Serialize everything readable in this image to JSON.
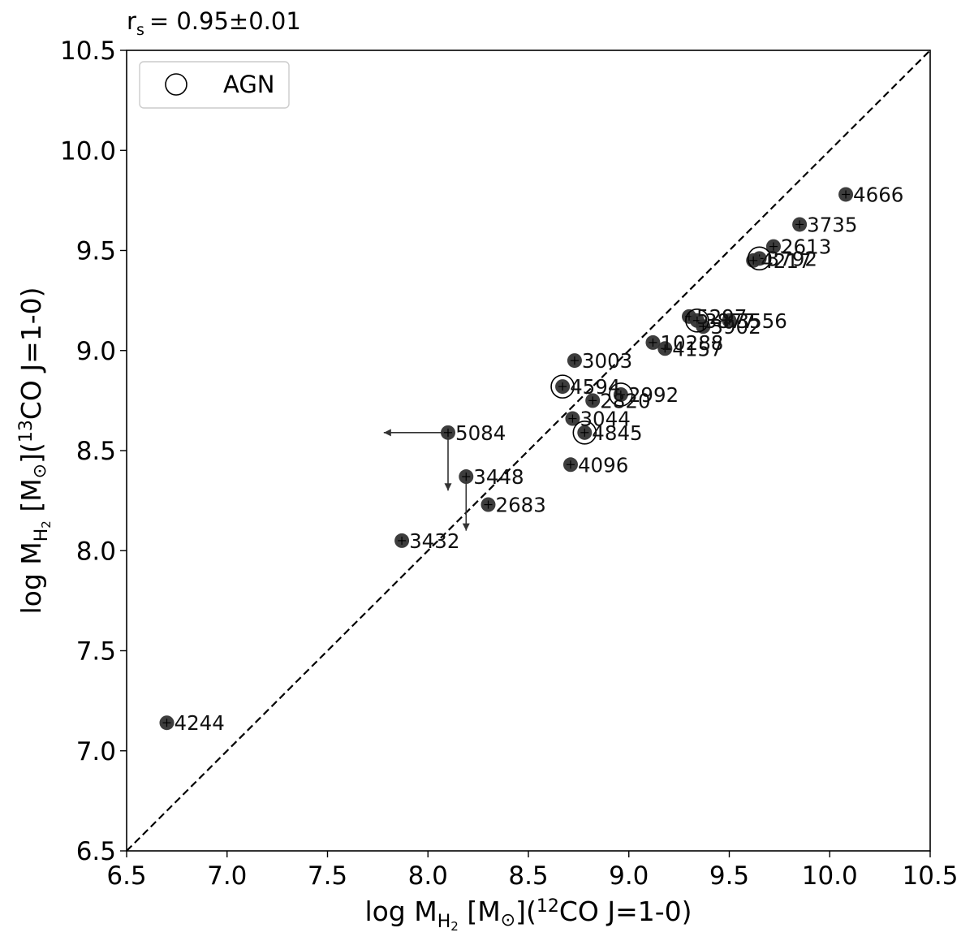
{
  "chart_data": {
    "type": "scatter",
    "annotation": {
      "prefix": "r",
      "sub": "s",
      "value": "= 0.95±0.01"
    },
    "xlabel": {
      "pre": "log M",
      "sub": "H",
      "subsub": "2",
      "mid": " [M",
      "sun": "⊙",
      "post1": "](",
      "sup": "12",
      "post2": "CO J=1-0)"
    },
    "ylabel": {
      "pre": "log M",
      "sub": "H",
      "subsub": "2",
      "mid": " [M",
      "sun": "⊙",
      "post1": "](",
      "sup": "13",
      "post2": "CO J=1-0)"
    },
    "xlim": [
      6.5,
      10.5
    ],
    "ylim": [
      6.5,
      10.5
    ],
    "xticks": [
      "6.5",
      "7.0",
      "7.5",
      "8.0",
      "8.5",
      "9.0",
      "9.5",
      "10.0",
      "10.5"
    ],
    "yticks": [
      "6.5",
      "7.0",
      "7.5",
      "8.0",
      "8.5",
      "9.0",
      "9.5",
      "10.0",
      "10.5"
    ],
    "one_to_one_line": true,
    "grid": false,
    "legend": {
      "placement": "top-left",
      "entries": [
        "AGN"
      ]
    },
    "colors": {
      "point": "#333333",
      "label": "#111111",
      "line": "#000000"
    },
    "points": [
      {
        "label": "4666",
        "x": 10.08,
        "y": 9.78,
        "agn": false
      },
      {
        "label": "3735",
        "x": 9.85,
        "y": 9.63,
        "agn": false
      },
      {
        "label": "2613",
        "x": 9.72,
        "y": 9.52,
        "agn": false
      },
      {
        "label": "3792",
        "x": 9.65,
        "y": 9.46,
        "agn": true
      },
      {
        "label": "4217",
        "x": 9.62,
        "y": 9.45,
        "agn": false
      },
      {
        "label": "5297",
        "x": 9.3,
        "y": 9.17,
        "agn": false
      },
      {
        "label": "3877",
        "x": 9.34,
        "y": 9.15,
        "agn": true
      },
      {
        "label": "3556",
        "x": 9.5,
        "y": 9.15,
        "agn": false
      },
      {
        "label": "3902",
        "x": 9.37,
        "y": 9.12,
        "agn": false
      },
      {
        "label": "10288",
        "x": 9.12,
        "y": 9.04,
        "agn": false
      },
      {
        "label": "4157",
        "x": 9.18,
        "y": 9.01,
        "agn": false
      },
      {
        "label": "3003",
        "x": 8.73,
        "y": 8.95,
        "agn": false
      },
      {
        "label": "4594",
        "x": 8.67,
        "y": 8.82,
        "agn": true
      },
      {
        "label": "2992",
        "x": 8.96,
        "y": 8.78,
        "agn": true
      },
      {
        "label": "2820",
        "x": 8.82,
        "y": 8.75,
        "agn": false
      },
      {
        "label": "3044",
        "x": 8.72,
        "y": 8.66,
        "agn": false
      },
      {
        "label": "4845",
        "x": 8.78,
        "y": 8.59,
        "agn": true
      },
      {
        "label": "5084",
        "x": 8.1,
        "y": 8.59,
        "agn": false
      },
      {
        "label": "4096",
        "x": 8.71,
        "y": 8.43,
        "agn": false
      },
      {
        "label": "3448",
        "x": 8.19,
        "y": 8.37,
        "agn": false
      },
      {
        "label": "2683",
        "x": 8.3,
        "y": 8.23,
        "agn": false
      },
      {
        "label": "3432",
        "x": 7.87,
        "y": 8.05,
        "agn": false
      },
      {
        "label": "4244",
        "x": 6.7,
        "y": 7.14,
        "agn": false
      }
    ],
    "upper_limits": [
      {
        "label": "5084",
        "x": 8.1,
        "y": 8.59,
        "y_to": 8.3
      },
      {
        "label": "3448",
        "x": 8.19,
        "y": 8.37,
        "y_to": 8.1
      }
    ],
    "x_upper_limits": [
      {
        "label": "5084",
        "x": 8.1,
        "y": 8.59,
        "x_to": 7.78
      }
    ]
  }
}
